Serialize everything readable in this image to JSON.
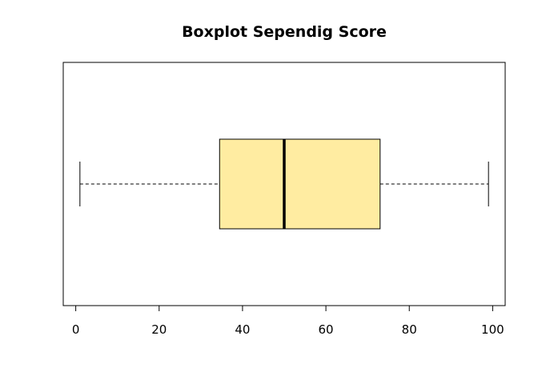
{
  "chart_data": {
    "type": "boxplot",
    "orientation": "horizontal",
    "title": "Boxplot Sependig Score",
    "xlabel": "",
    "ylabel": "",
    "xlim": [
      -3,
      103
    ],
    "ticks": [
      0,
      20,
      40,
      60,
      80,
      100
    ],
    "tick_labels": [
      "0",
      "20",
      "40",
      "60",
      "80",
      "100"
    ],
    "box": {
      "min": 1,
      "q1": 34.5,
      "median": 50,
      "q3": 73,
      "max": 99
    },
    "grid": false,
    "colors": {
      "box_fill": "#FFECA1",
      "stroke": "#000000"
    }
  }
}
